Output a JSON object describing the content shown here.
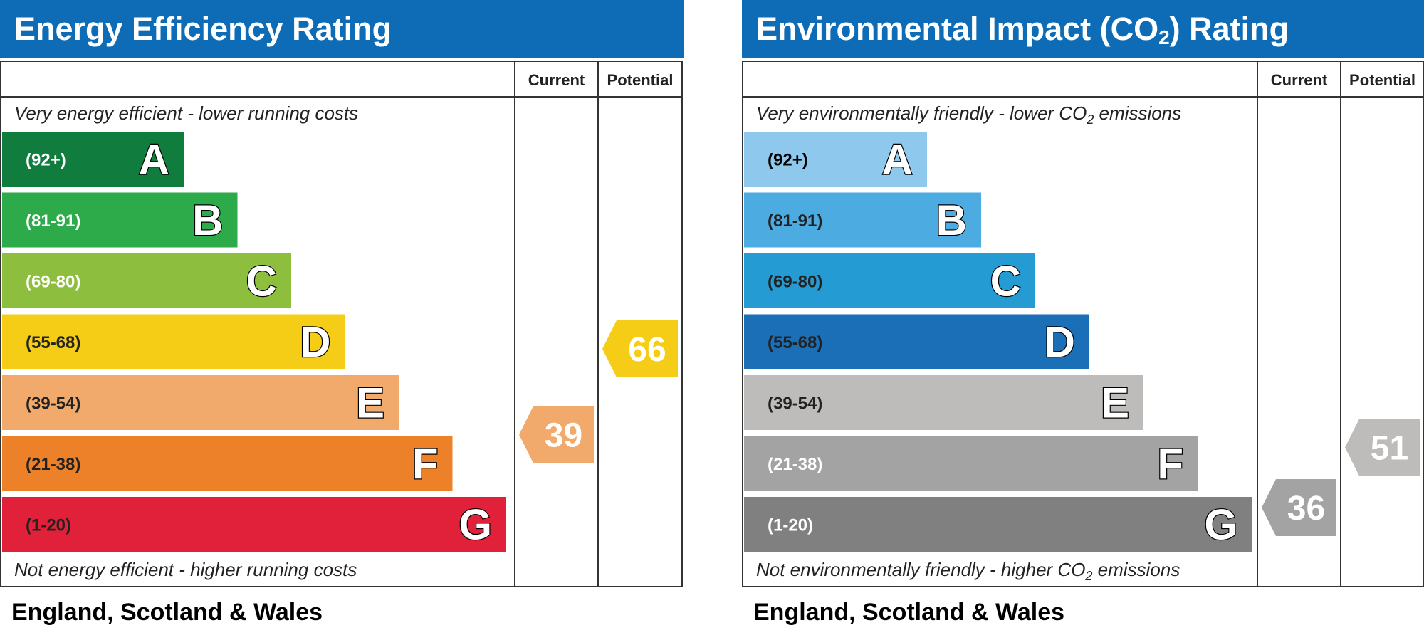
{
  "chart_data": [
    {
      "type": "bar",
      "title_main": "Energy Efficiency Rating",
      "title_sub": "",
      "title_tail": "",
      "columns": {
        "current": "Current",
        "potential": "Potential"
      },
      "top_note": {
        "before": "Very energy efficient - lower running costs",
        "sub": "",
        "after": ""
      },
      "bottom_note": {
        "before": "Not energy efficient - higher running costs",
        "sub": "",
        "after": ""
      },
      "bands": [
        {
          "letter": "A",
          "range": "(92+)",
          "color": "#107c3e",
          "text_color": "#ffffff"
        },
        {
          "letter": "B",
          "range": "(81-91)",
          "color": "#2daa4a",
          "text_color": "#ffffff"
        },
        {
          "letter": "C",
          "range": "(69-80)",
          "color": "#8dbe3e",
          "text_color": "#ffffff"
        },
        {
          "letter": "D",
          "range": "(55-68)",
          "color": "#f5cd17",
          "text_color": "#222222"
        },
        {
          "letter": "E",
          "range": "(39-54)",
          "color": "#f2a96c",
          "text_color": "#222222"
        },
        {
          "letter": "F",
          "range": "(21-38)",
          "color": "#ec8129",
          "text_color": "#222222"
        },
        {
          "letter": "G",
          "range": "(1-20)",
          "color": "#e12139",
          "text_color": "#222222"
        }
      ],
      "current": {
        "value": 39,
        "label": "39",
        "color": "#f2a96c"
      },
      "potential": {
        "value": 66,
        "label": "66",
        "color": "#f5cd17"
      },
      "footer": "England, Scotland & Wales"
    },
    {
      "type": "bar",
      "title_main": "Environmental Impact (CO",
      "title_sub": "2",
      "title_tail": ") Rating",
      "columns": {
        "current": "Current",
        "potential": "Potential"
      },
      "top_note": {
        "before": "Very environmentally friendly - lower CO",
        "sub": "2",
        "after": " emissions"
      },
      "bottom_note": {
        "before": "Not environmentally friendly - higher CO",
        "sub": "2",
        "after": " emissions"
      },
      "bands": [
        {
          "letter": "A",
          "range": "(92+)",
          "color": "#8ec8ec",
          "text_color": "#000000"
        },
        {
          "letter": "B",
          "range": "(81-91)",
          "color": "#4cabe0",
          "text_color": "#222222"
        },
        {
          "letter": "C",
          "range": "(69-80)",
          "color": "#259bd4",
          "text_color": "#222222"
        },
        {
          "letter": "D",
          "range": "(55-68)",
          "color": "#1b6fb7",
          "text_color": "#222222"
        },
        {
          "letter": "E",
          "range": "(39-54)",
          "color": "#bdbcba",
          "text_color": "#222222"
        },
        {
          "letter": "F",
          "range": "(21-38)",
          "color": "#a3a3a3",
          "text_color": "#ffffff"
        },
        {
          "letter": "G",
          "range": "(1-20)",
          "color": "#808080",
          "text_color": "#ffffff"
        }
      ],
      "current": {
        "value": 36,
        "label": "36",
        "color": "#a3a3a3"
      },
      "potential": {
        "value": 51,
        "label": "51",
        "color": "#bdbcba"
      },
      "footer": "England, Scotland & Wales"
    }
  ]
}
